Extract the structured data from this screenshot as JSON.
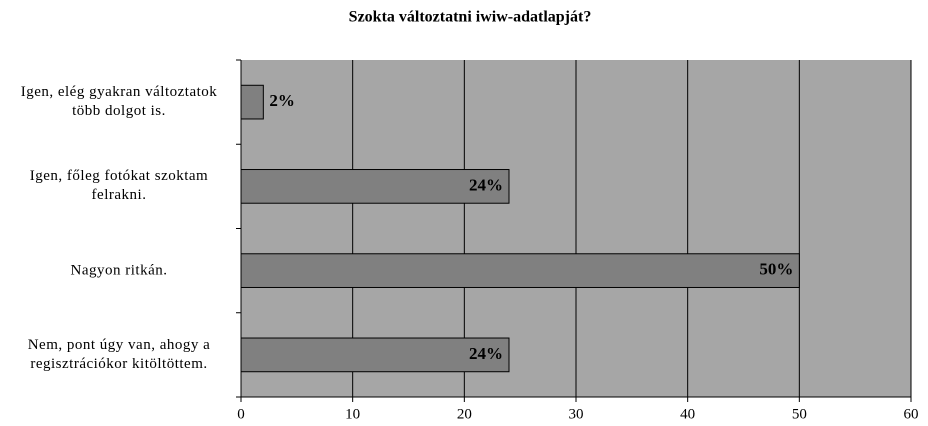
{
  "chart_data": {
    "type": "barh",
    "title": "Szokta változtatni iwiw-adatlapját?",
    "categories": [
      "Igen, elég gyakran változtatok több dolgot is.",
      "Igen, főleg fotókat szoktam felrakni.",
      "Nagyon ritkán.",
      "Nem, pont úgy van, ahogy a regisztrációkor kitöltöttem."
    ],
    "values": [
      2,
      24,
      50,
      24
    ],
    "value_labels": [
      "2%",
      "24%",
      "50%",
      "24%"
    ],
    "color": "#808080",
    "background": "#a6a6a6",
    "xlim": [
      0,
      60
    ],
    "xticks": [
      0,
      10,
      20,
      30,
      40,
      50,
      60
    ],
    "grid": true
  }
}
